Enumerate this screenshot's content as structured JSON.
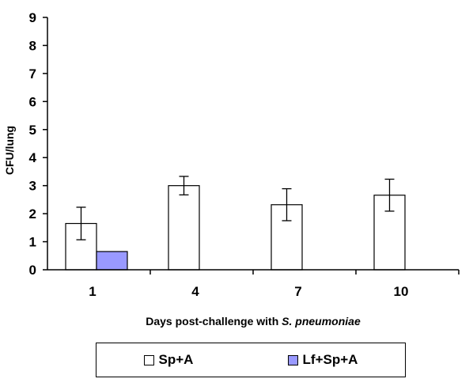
{
  "chart_data": {
    "type": "bar",
    "title": "",
    "xlabel_prefix": "Days post-challenge with ",
    "xlabel_italic": "S. pneumoniae",
    "ylabel": "CFU/lung",
    "categories": [
      "1",
      "4",
      "7",
      "10"
    ],
    "yticks": [
      "0",
      "1",
      "2",
      "3",
      "4",
      "5",
      "6",
      "7",
      "8",
      "9"
    ],
    "ylim": [
      0,
      9
    ],
    "grid": false,
    "legend_position": "bottom",
    "series": [
      {
        "name": "Sp+A",
        "color": "#ffffff",
        "values": [
          1.65,
          3.0,
          2.32,
          2.66
        ],
        "error": [
          0.58,
          0.33,
          0.57,
          0.57
        ]
      },
      {
        "name": "Lf+Sp+A",
        "color": "#9999ff",
        "values": [
          0.65,
          null,
          null,
          null
        ],
        "error": [
          null,
          null,
          null,
          null
        ]
      }
    ]
  }
}
